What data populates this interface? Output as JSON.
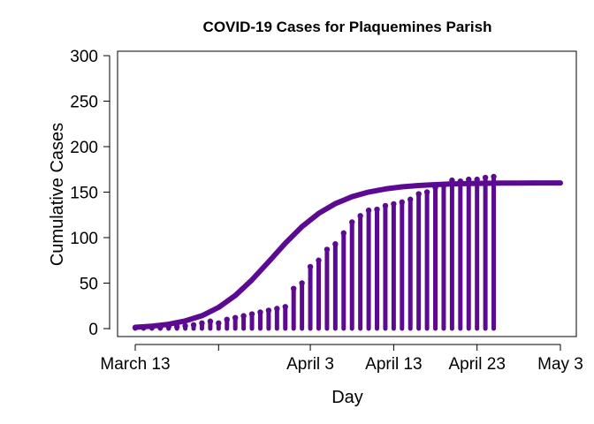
{
  "chart_data": {
    "type": "bar",
    "title": "COVID-19 Cases for Plaquemines Parish",
    "xlabel": "Day",
    "ylabel": "Cumulative Cases",
    "x_unit": "day",
    "xlim": [
      0,
      52
    ],
    "ylim": [
      0,
      300
    ],
    "x_ticks": [
      {
        "x": 0,
        "label": "March 13"
      },
      {
        "x": 10,
        "label": ""
      },
      {
        "x": 21,
        "label": "April 3"
      },
      {
        "x": 31,
        "label": "April 13"
      },
      {
        "x": 41,
        "label": "April 23"
      },
      {
        "x": 51,
        "label": "May 3"
      }
    ],
    "y_ticks": [
      0,
      50,
      100,
      150,
      200,
      250,
      300
    ],
    "series": [
      {
        "kind": "observed",
        "x": [
          0,
          1,
          2,
          3,
          4,
          5,
          6,
          7,
          8,
          9,
          10,
          11,
          12,
          13,
          14,
          15,
          16,
          17,
          18,
          19,
          20,
          21,
          22,
          23,
          24,
          25,
          26,
          27,
          28,
          29,
          30,
          31,
          32,
          33,
          34,
          35,
          36,
          37,
          38,
          39,
          40,
          41,
          42,
          43
        ],
        "values": [
          1,
          1,
          1,
          1,
          2,
          2,
          3,
          4,
          6,
          8,
          6,
          10,
          12,
          14,
          16,
          18,
          20,
          22,
          24,
          44,
          50,
          68,
          75,
          87,
          93,
          105,
          117,
          124,
          130,
          131,
          135,
          137,
          139,
          142,
          148,
          150,
          155,
          157,
          163,
          162,
          164,
          164,
          166,
          167
        ]
      },
      {
        "kind": "fitted",
        "x": [
          0,
          2,
          4,
          6,
          8,
          10,
          12,
          14,
          16,
          18,
          20,
          22,
          24,
          26,
          28,
          30,
          32,
          34,
          36,
          38,
          40,
          42,
          44,
          46,
          48,
          50,
          51
        ],
        "values": [
          1.5,
          2.7,
          4.8,
          8.4,
          14.2,
          23.3,
          36.4,
          53.5,
          73.4,
          93.8,
          112.0,
          126.6,
          137.4,
          145.0,
          150.1,
          153.5,
          155.8,
          157.3,
          158.3,
          159.0,
          159.4,
          159.7,
          159.9,
          160.0,
          160.1,
          160.1,
          160.1
        ]
      }
    ],
    "colors": {
      "line": "#5b0a91"
    },
    "grid": false,
    "legend": "none"
  }
}
